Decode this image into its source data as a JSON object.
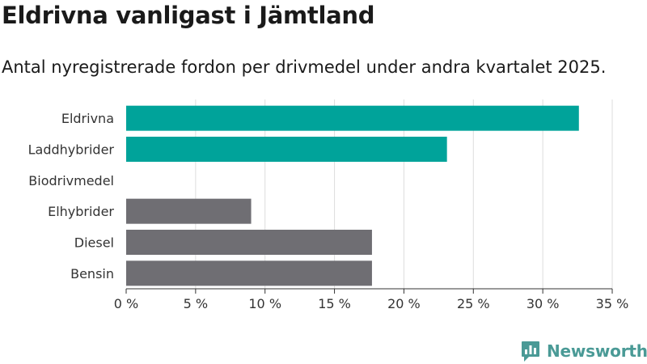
{
  "title": "Eldrivna vanligast i Jämtland",
  "subtitle": "Antal nyregistrerade fordon per drivmedel under andra kvartalet 2025.",
  "brand": {
    "name": "Newsworthy",
    "icon": "newsworthy-logo-icon",
    "color": "#4a9a96"
  },
  "colors": {
    "highlight": "#00a39a",
    "default": "#6f6e73",
    "grid": "#dddddd",
    "axis": "#333333"
  },
  "chart_data": {
    "type": "bar",
    "orientation": "horizontal",
    "categories": [
      "Eldrivna",
      "Laddhybrider",
      "Biodrivmedel",
      "Elhybrider",
      "Diesel",
      "Bensin"
    ],
    "values": [
      32.6,
      23.1,
      0,
      9.0,
      17.7,
      17.7
    ],
    "highlighted": [
      true,
      true,
      false,
      false,
      false,
      false
    ],
    "xlim": [
      0,
      35
    ],
    "xticks": [
      0,
      5,
      10,
      15,
      20,
      25,
      30,
      35
    ],
    "xtick_labels": [
      "0 %",
      "5 %",
      "10 %",
      "15 %",
      "20 %",
      "25 %",
      "30 %",
      "35 %"
    ],
    "title": "Eldrivna vanligast i Jämtland",
    "subtitle": "Antal nyregistrerade fordon per drivmedel under andra kvartalet 2025.",
    "xlabel": "",
    "ylabel": "",
    "grid": true,
    "legend": "none"
  }
}
